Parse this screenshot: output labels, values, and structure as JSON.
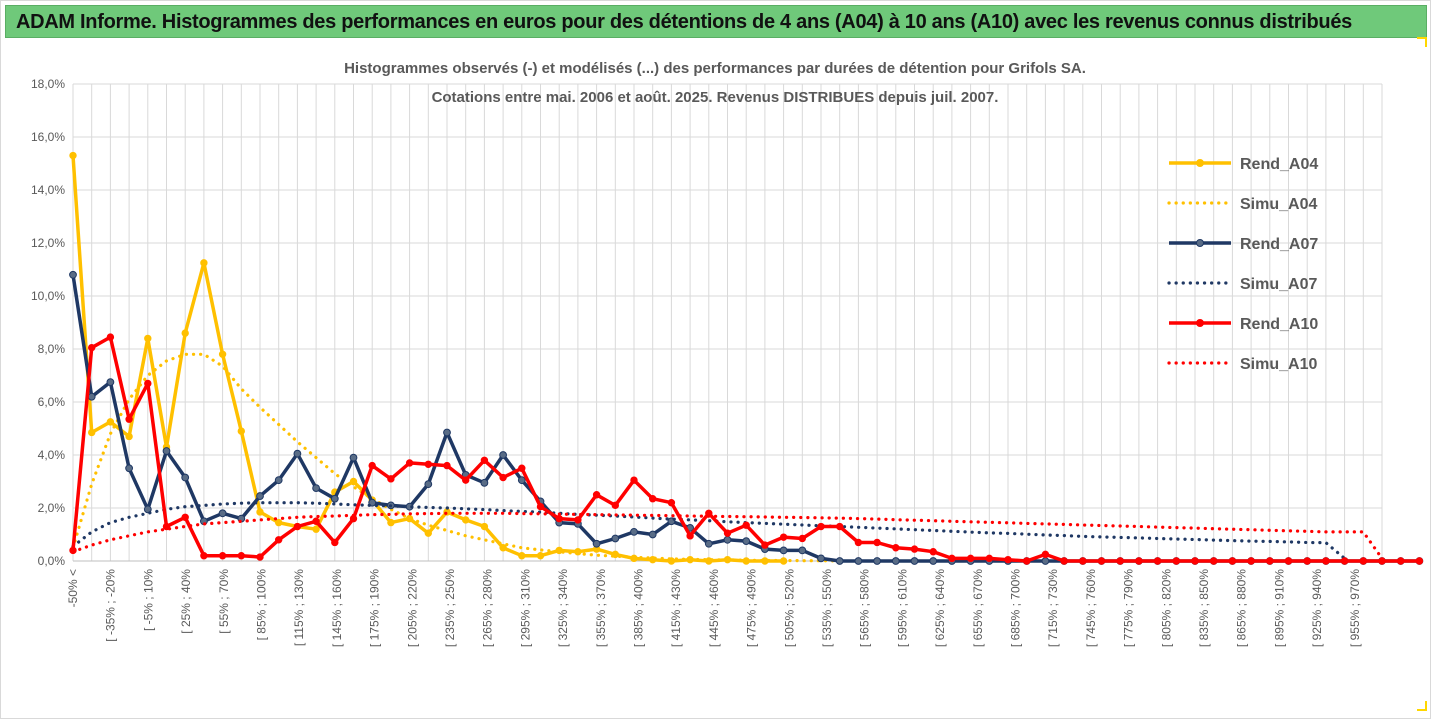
{
  "header": {
    "title": "ADAM Informe. Histogrammes des performances en euros pour des détentions de 4 ans (A04) à 10 ans (A10) avec les revenus connus distribués"
  },
  "chart_data": {
    "type": "line",
    "title_lines": [
      "Histogrammes observés (-) et modélisés (...) des performances par durées de détention pour Grifols SA.",
      "Cotations entre mai. 2006 et août. 2025. Revenus DISTRIBUES depuis juil. 2007."
    ],
    "ylim": [
      0,
      18
    ],
    "y_ticks": [
      "0,0%",
      "2,0%",
      "4,0%",
      "6,0%",
      "8,0%",
      "10,0%",
      "12,0%",
      "14,0%",
      "16,0%",
      "18,0%"
    ],
    "x_tick_labels": [
      "-50% <",
      "[ -35% ; -20%",
      "[ -5% ; 10%",
      "[ 25% ; 40%",
      "[ 55% ; 70%",
      "[ 85% ; 100%",
      "[ 115% ; 130%",
      "[ 145% ; 160%",
      "[ 175% ; 190%",
      "[ 205% ; 220%",
      "[ 235% ; 250%",
      "[ 265% ; 280%",
      "[ 295% ; 310%",
      "[ 325% ; 340%",
      "[ 355% ; 370%",
      "[ 385% ; 400%",
      "[ 415% ; 430%",
      "[ 445% ; 460%",
      "[ 475% ; 490%",
      "[ 505% ; 520%",
      "[ 535% ; 550%",
      "[ 565% ; 580%",
      "[ 595% ; 610%",
      "[ 625% ; 640%",
      "[ 655% ; 670%",
      "[ 685% ; 700%",
      "[ 715% ; 730%",
      "[ 745% ; 760%",
      "[ 775% ; 790%",
      "[ 805% ; 820%",
      "[ 835% ; 850%",
      "[ 865% ; 880%",
      "[ 895% ; 910%",
      "[ 925% ; 940%",
      "[ 955% ; 970%"
    ],
    "legend_position": "right",
    "series": [
      {
        "name": "Rend_A04",
        "style": "solid",
        "color": "#ffc000",
        "values": [
          15.3,
          4.85,
          5.25,
          4.7,
          8.4,
          4.3,
          8.6,
          11.25,
          7.8,
          4.9,
          1.85,
          1.45,
          1.3,
          1.2,
          2.6,
          3.0,
          2.3,
          1.45,
          1.6,
          1.05,
          1.85,
          1.55,
          1.3,
          0.5,
          0.2,
          0.2,
          0.4,
          0.35,
          0.45,
          0.25,
          0.1,
          0.05,
          0.0,
          0.05,
          0.0,
          0.05,
          0.0,
          0.0,
          0.0
        ]
      },
      {
        "name": "Simu_A04",
        "style": "dotted",
        "color": "#ffc000",
        "values": [
          0.5,
          2.9,
          4.8,
          6.1,
          7.0,
          7.55,
          7.8,
          7.8,
          7.35,
          6.5,
          5.8,
          5.15,
          4.5,
          3.9,
          3.3,
          2.8,
          2.35,
          1.95,
          1.6,
          1.35,
          1.15,
          0.95,
          0.8,
          0.65,
          0.5,
          0.42,
          0.35,
          0.28,
          0.22,
          0.18,
          0.14,
          0.11,
          0.08,
          0.06,
          0.05,
          0.04,
          0.03,
          0.02,
          0.02,
          0.01,
          0.01,
          0.0
        ]
      },
      {
        "name": "Rend_A07",
        "style": "solid",
        "color": "#1f3864",
        "values": [
          10.8,
          6.2,
          6.75,
          3.5,
          1.95,
          4.15,
          3.15,
          1.5,
          1.8,
          1.6,
          2.45,
          3.05,
          4.05,
          2.75,
          2.35,
          3.9,
          2.2,
          2.1,
          2.05,
          2.9,
          4.85,
          3.25,
          2.95,
          4.0,
          3.05,
          2.25,
          1.45,
          1.4,
          0.65,
          0.85,
          1.1,
          1.0,
          1.5,
          1.25,
          0.65,
          0.8,
          0.75,
          0.45,
          0.4,
          0.4,
          0.1,
          0.0,
          0.0,
          0.0,
          0.0,
          0.0,
          0.0,
          0.0,
          0.0,
          0.0,
          0.0,
          0.0,
          0.0,
          0.0,
          0.0,
          0.0,
          0.0,
          0.0,
          0.0,
          0.0,
          0.0,
          0.0,
          0.0,
          0.0,
          0.0,
          0.0,
          0.0,
          0.0,
          0.0,
          0.0,
          0.0,
          0.0,
          0.0
        ]
      },
      {
        "name": "Simu_A07",
        "style": "dotted",
        "color": "#1f3864",
        "values": [
          0.55,
          1.1,
          1.45,
          1.65,
          1.8,
          1.95,
          2.05,
          2.1,
          2.15,
          2.18,
          2.2,
          2.2,
          2.2,
          2.18,
          2.15,
          2.12,
          2.1,
          2.08,
          2.05,
          2.02,
          2.0,
          1.97,
          1.94,
          1.9,
          1.87,
          1.84,
          1.8,
          1.76,
          1.73,
          1.7,
          1.66,
          1.62,
          1.58,
          1.55,
          1.52,
          1.48,
          1.45,
          1.42,
          1.39,
          1.36,
          1.33,
          1.3,
          1.27,
          1.24,
          1.21,
          1.18,
          1.15,
          1.12,
          1.09,
          1.06,
          1.04,
          1.01,
          0.98,
          0.96,
          0.93,
          0.91,
          0.89,
          0.87,
          0.85,
          0.83,
          0.81,
          0.79,
          0.77,
          0.75,
          0.74,
          0.72,
          0.7,
          0.69,
          0.1
        ]
      },
      {
        "name": "Rend_A10",
        "style": "solid",
        "color": "#ff0000",
        "values": [
          0.4,
          8.05,
          8.45,
          5.35,
          6.7,
          1.3,
          1.65,
          0.2,
          0.2,
          0.2,
          0.15,
          0.8,
          1.3,
          1.5,
          0.7,
          1.6,
          3.6,
          3.1,
          3.7,
          3.65,
          3.6,
          3.05,
          3.8,
          3.15,
          3.5,
          2.05,
          1.6,
          1.55,
          2.5,
          2.1,
          3.05,
          2.35,
          2.2,
          0.95,
          1.8,
          1.05,
          1.35,
          0.6,
          0.9,
          0.85,
          1.3,
          1.3,
          0.7,
          0.7,
          0.5,
          0.45,
          0.35,
          0.1,
          0.1,
          0.1,
          0.05,
          0.0,
          0.25,
          0.0,
          0.0,
          0.0,
          0.0,
          0.0,
          0.0,
          0.0,
          0.0,
          0.0,
          0.0,
          0.0,
          0.0,
          0.0,
          0.0,
          0.0,
          0.0,
          0.0,
          0.0,
          0.0,
          0.0
        ]
      },
      {
        "name": "Simu_A10",
        "style": "dotted",
        "color": "#ff0000",
        "values": [
          0.35,
          0.6,
          0.8,
          0.95,
          1.1,
          1.2,
          1.3,
          1.4,
          1.45,
          1.5,
          1.55,
          1.6,
          1.65,
          1.68,
          1.7,
          1.72,
          1.75,
          1.76,
          1.78,
          1.79,
          1.8,
          1.8,
          1.8,
          1.8,
          1.79,
          1.78,
          1.77,
          1.76,
          1.75,
          1.74,
          1.73,
          1.72,
          1.71,
          1.7,
          1.69,
          1.68,
          1.67,
          1.66,
          1.65,
          1.64,
          1.63,
          1.62,
          1.6,
          1.58,
          1.56,
          1.54,
          1.52,
          1.5,
          1.48,
          1.46,
          1.44,
          1.42,
          1.4,
          1.38,
          1.36,
          1.34,
          1.32,
          1.3,
          1.28,
          1.26,
          1.24,
          1.22,
          1.2,
          1.18,
          1.16,
          1.14,
          1.12,
          1.1,
          1.1,
          1.1,
          0.1
        ]
      }
    ]
  }
}
